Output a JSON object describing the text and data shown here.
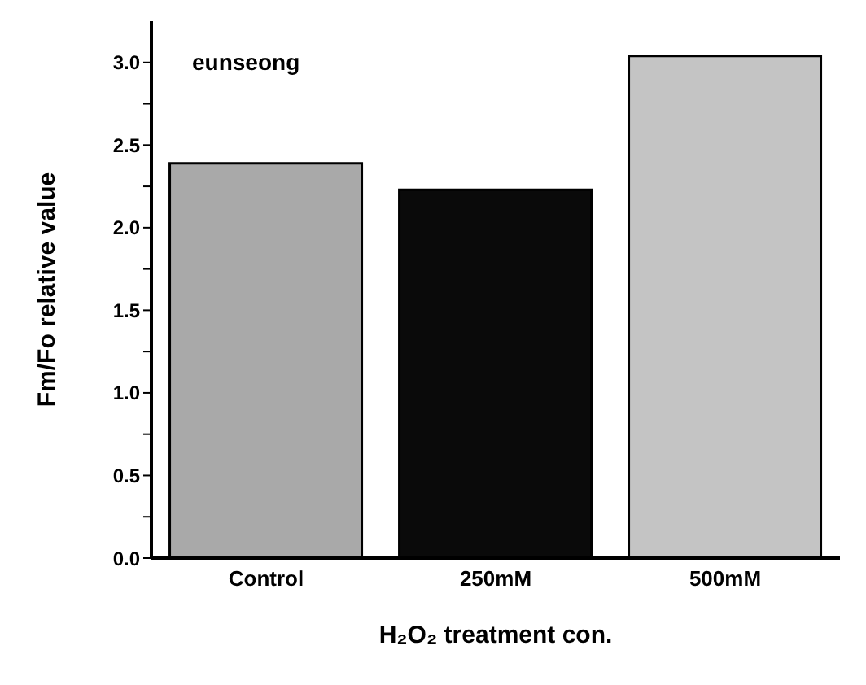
{
  "chart_data": {
    "type": "bar",
    "categories": [
      "Control",
      "250mM",
      "500mM"
    ],
    "values": [
      2.39,
      2.23,
      3.04
    ],
    "colors": [
      "#a9a9a9",
      "#0a0a0a",
      "#c4c4c4"
    ],
    "xlabel": "H₂O₂ treatment con.",
    "ylabel": "Fm/Fo relative value",
    "annotations": [
      "eunseong"
    ],
    "ylim": [
      0,
      3.25
    ],
    "yticks": [
      {
        "value": 0,
        "label": "0.0"
      },
      {
        "value": 0.25,
        "label": null
      },
      0.5,
      {
        "value": 0.75,
        "label": null
      },
      {
        "value": 1,
        "label": "1.0"
      },
      {
        "value": 1.25,
        "label": null
      },
      1.5,
      {
        "value": 1.75,
        "label": null
      },
      {
        "value": 2,
        "label": "2.0"
      },
      {
        "value": 2.25,
        "label": null
      },
      2.5,
      {
        "value": 2.75,
        "label": null
      },
      {
        "value": 3,
        "label": "3.0"
      }
    ],
    "grid": false
  }
}
